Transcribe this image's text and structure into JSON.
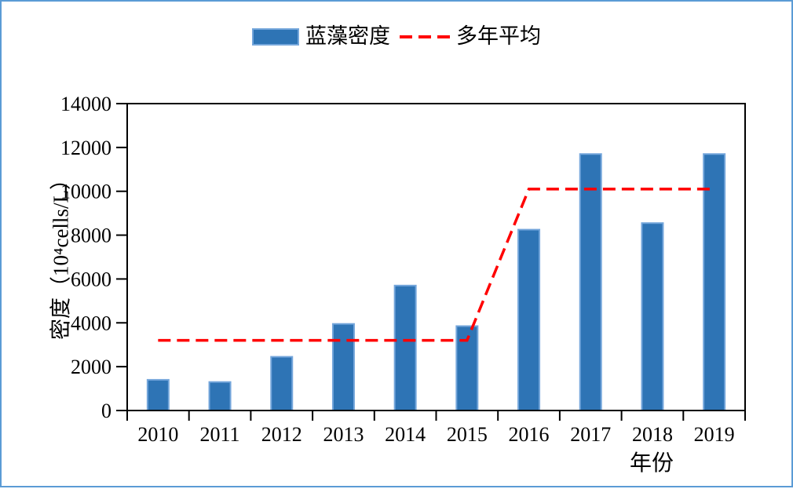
{
  "figure": {
    "border_color": "#5B9BD5",
    "background_color": "#FFFFFF",
    "axis_color": "#000000"
  },
  "chart_data": {
    "type": "bar",
    "title": "",
    "categories": [
      "2010",
      "2011",
      "2012",
      "2013",
      "2014",
      "2015",
      "2016",
      "2017",
      "2018",
      "2019"
    ],
    "series": [
      {
        "name": "蓝藻密度",
        "type": "bar",
        "color": "#2E74B5",
        "border_color": "#74A6DB",
        "values": [
          1400,
          1300,
          2450,
          3950,
          5700,
          3850,
          8250,
          11700,
          8550,
          11700
        ]
      },
      {
        "name": "多年平均",
        "type": "line",
        "line_style": "dashed",
        "color": "#FF0000",
        "values": [
          3200,
          3200,
          3200,
          3200,
          3200,
          3200,
          10100,
          10100,
          10100,
          10100
        ]
      }
    ],
    "xlabel": "年份",
    "ylabel": "密度（10⁴cells/L）",
    "ylim": [
      0,
      14000
    ],
    "yticks": [
      0,
      2000,
      4000,
      6000,
      8000,
      10000,
      12000,
      14000
    ],
    "grid": false,
    "legend_position": "top-center"
  }
}
